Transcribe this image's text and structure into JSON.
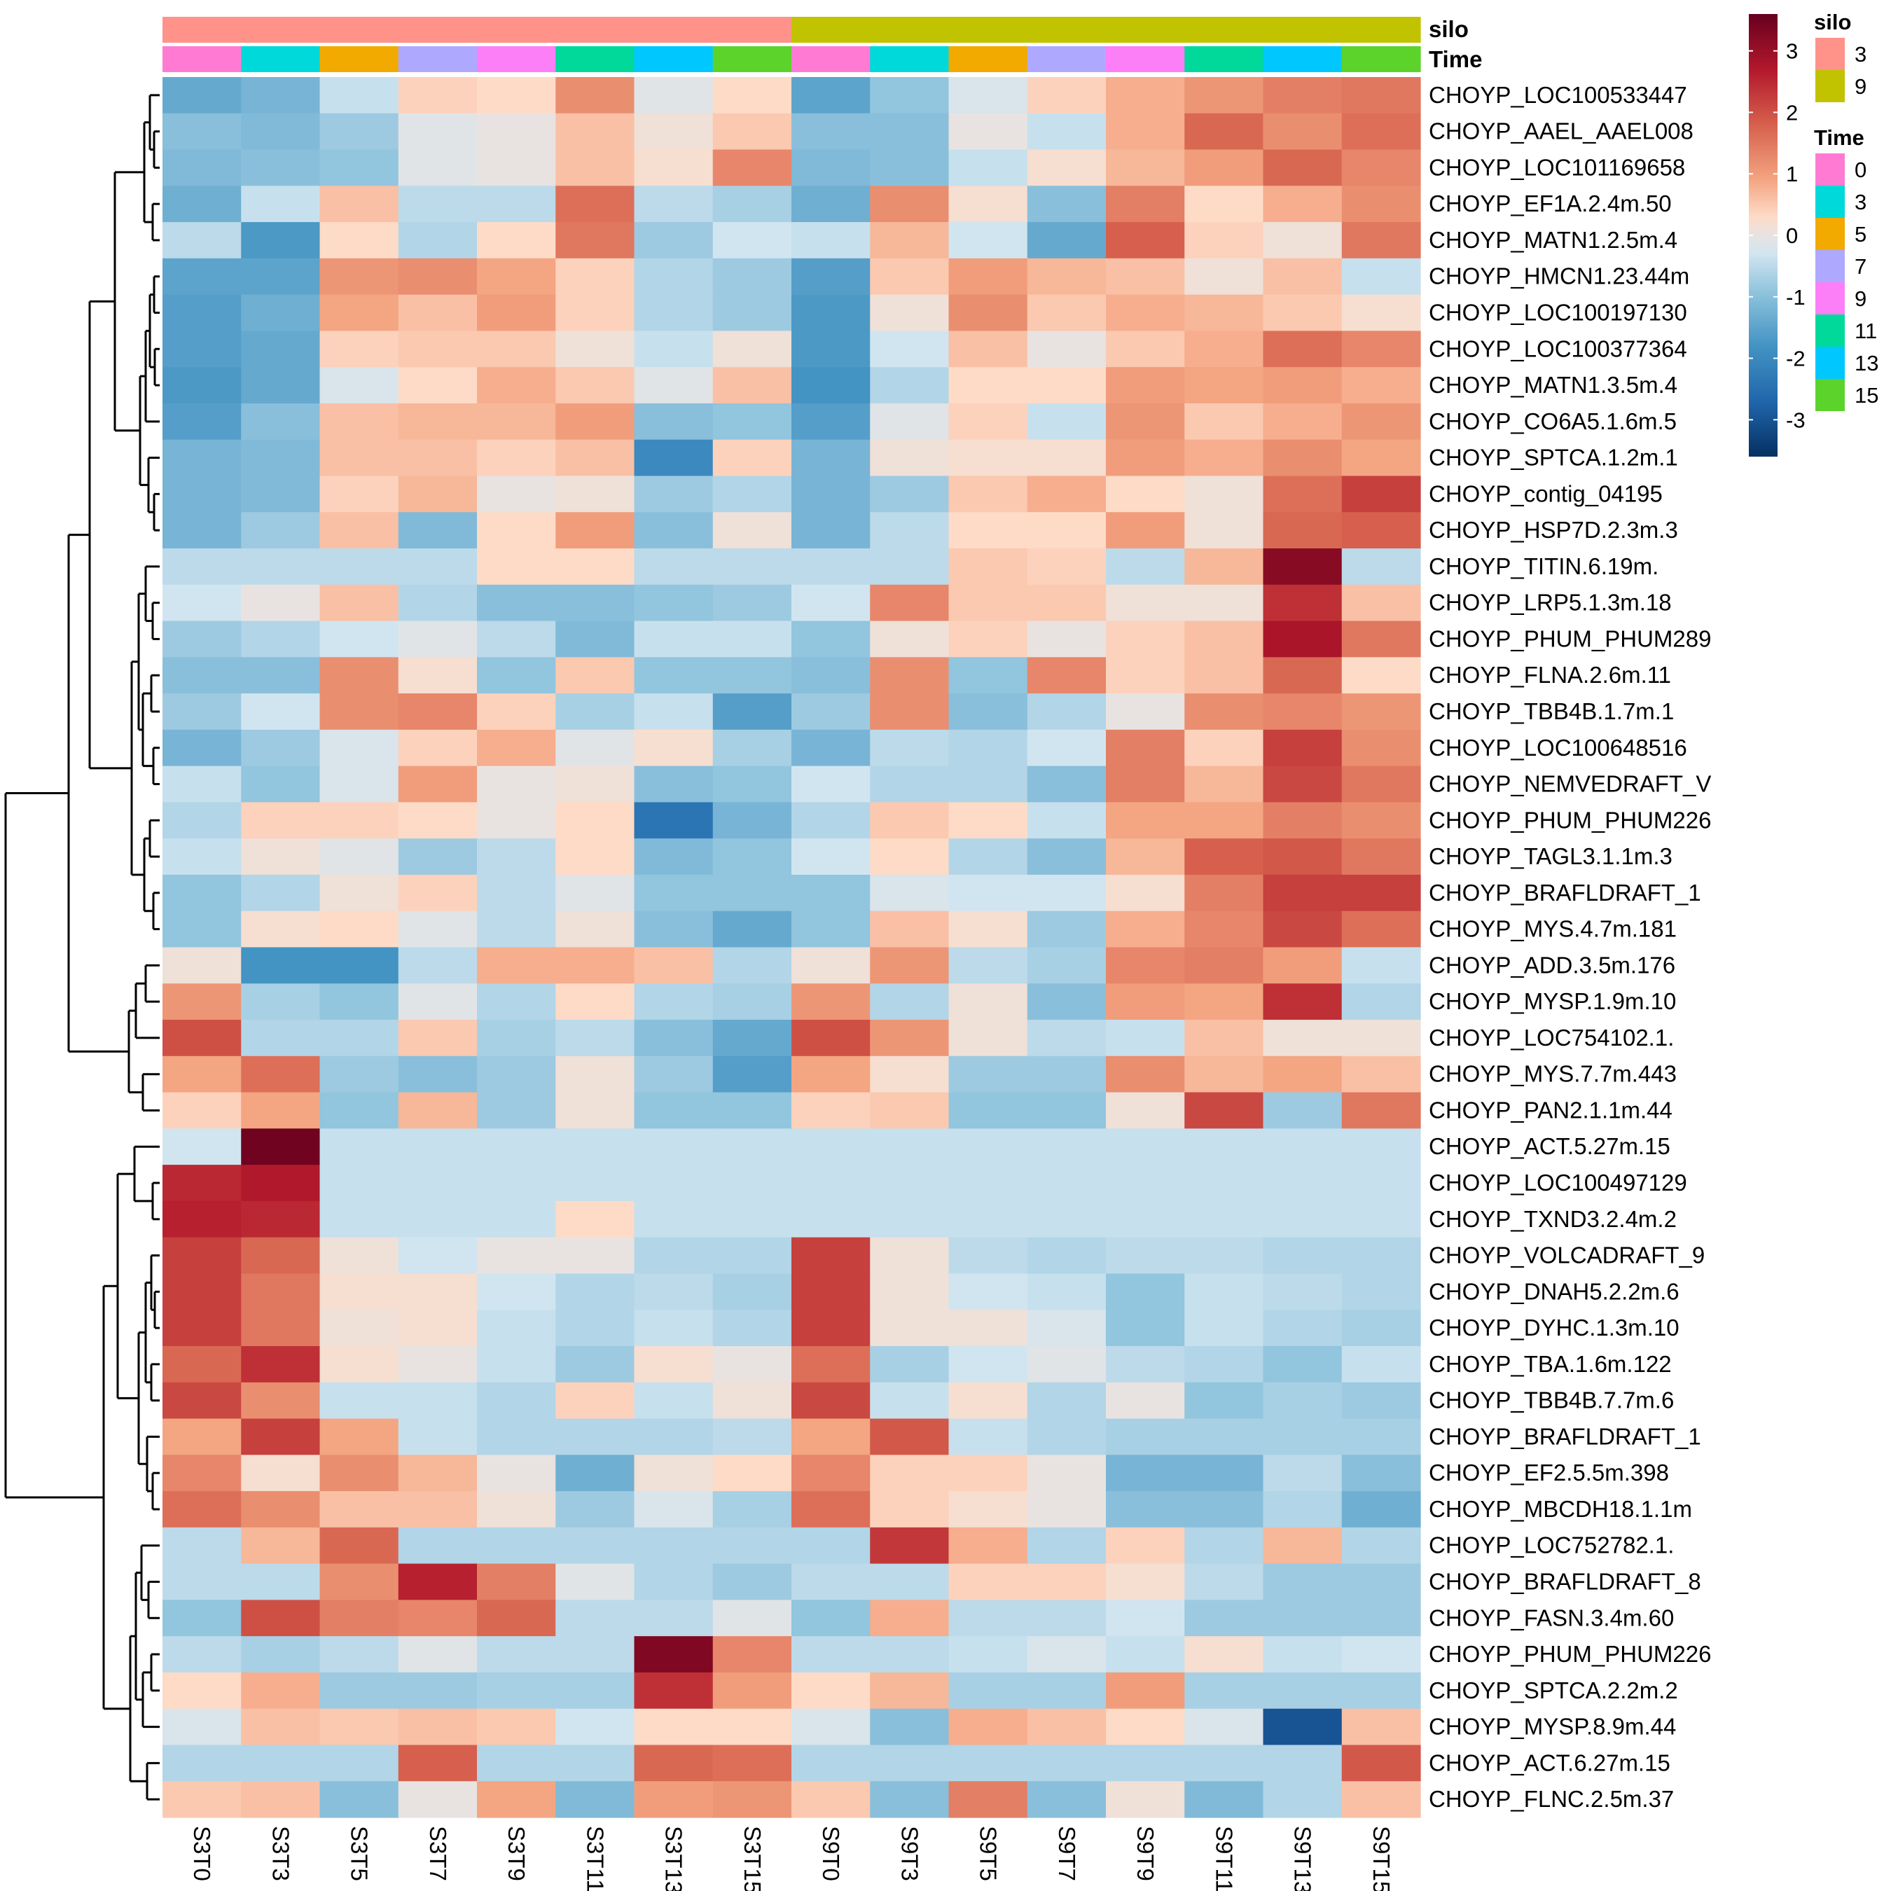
{
  "chart_data": {
    "type": "heatmap",
    "title": "",
    "columns": [
      "S3T0",
      "S3T3",
      "S3T5",
      "S3T7",
      "S3T9",
      "S3T11",
      "S3T13",
      "S3T15",
      "S9T0",
      "S9T3",
      "S9T5",
      "S9T7",
      "S9T9",
      "S9T11",
      "S9T13",
      "S9T15"
    ],
    "rows": [
      "CHOYP_LOC100533447",
      "CHOYP_AAEL_AAEL008",
      "CHOYP_LOC101169658",
      "CHOYP_EF1A.2.4m.50",
      "CHOYP_MATN1.2.5m.4",
      "CHOYP_HMCN1.23.44m",
      "CHOYP_LOC100197130",
      "CHOYP_LOC100377364",
      "CHOYP_MATN1.3.5m.4",
      "CHOYP_CO6A5.1.6m.5",
      "CHOYP_SPTCA.1.2m.1",
      "CHOYP_contig_04195",
      "CHOYP_HSP7D.2.3m.3",
      "CHOYP_TITIN.6.19m.",
      "CHOYP_LRP5.1.3m.18",
      "CHOYP_PHUM_PHUM289",
      "CHOYP_FLNA.2.6m.11",
      "CHOYP_TBB4B.1.7m.1",
      "CHOYP_LOC100648516",
      "CHOYP_NEMVEDRAFT_V",
      "CHOYP_PHUM_PHUM226",
      "CHOYP_TAGL3.1.1m.3",
      "CHOYP_BRAFLDRAFT_1",
      "CHOYP_MYS.4.7m.181",
      "CHOYP_ADD.3.5m.176",
      "CHOYP_MYSP.1.9m.10",
      "CHOYP_LOC754102.1.",
      "CHOYP_MYS.7.7m.443",
      "CHOYP_PAN2.1.1m.44",
      "CHOYP_ACT.5.27m.15",
      "CHOYP_LOC100497129",
      "CHOYP_TXND3.2.4m.2",
      "CHOYP_VOLCADRAFT_9",
      "CHOYP_DNAH5.2.2m.6",
      "CHOYP_DYHC.1.3m.10",
      "CHOYP_TBA.1.6m.122",
      "CHOYP_TBB4B.7.7m.6",
      "CHOYP_BRAFLDRAFT_1",
      "CHOYP_EF2.5.5m.398",
      "CHOYP_MBCDH18.1.1m",
      "CHOYP_LOC752782.1.",
      "CHOYP_BRAFLDRAFT_8",
      "CHOYP_FASN.3.4m.60",
      "CHOYP_PHUM_PHUM226",
      "CHOYP_SPTCA.2.2m.2",
      "CHOYP_MYSP.8.9m.44",
      "CHOYP_ACT.6.27m.15",
      "CHOYP_FLNC.2.5m.37"
    ],
    "values": [
      [
        -1.4,
        -1.2,
        -0.4,
        0.4,
        0.3,
        1.2,
        -0.1,
        0.3,
        -1.5,
        -0.9,
        -0.2,
        0.4,
        0.8,
        1.1,
        1.4,
        1.5
      ],
      [
        -1.0,
        -1.1,
        -0.8,
        -0.1,
        0.0,
        0.6,
        0.1,
        0.5,
        -1.0,
        -1.0,
        0.0,
        -0.4,
        0.8,
        1.7,
        1.2,
        1.6
      ],
      [
        -1.1,
        -1.0,
        -0.9,
        -0.1,
        0.0,
        0.6,
        0.2,
        1.3,
        -1.1,
        -1.0,
        -0.4,
        0.2,
        0.7,
        1.0,
        1.7,
        1.3
      ],
      [
        -1.3,
        -0.4,
        0.6,
        -0.5,
        -0.5,
        1.6,
        -0.5,
        -0.7,
        -1.3,
        1.2,
        0.2,
        -1.0,
        1.4,
        0.3,
        0.8,
        1.2
      ],
      [
        -0.5,
        -1.7,
        0.3,
        -0.6,
        0.3,
        1.5,
        -0.8,
        -0.3,
        -0.4,
        0.7,
        -0.3,
        -1.4,
        1.8,
        0.4,
        0.1,
        1.5
      ],
      [
        -1.5,
        -1.5,
        1.1,
        1.2,
        0.9,
        0.4,
        -0.6,
        -0.8,
        -1.6,
        0.5,
        1.0,
        0.7,
        0.6,
        0.1,
        0.6,
        -0.4
      ],
      [
        -1.6,
        -1.3,
        0.9,
        0.6,
        1.0,
        0.4,
        -0.6,
        -0.8,
        -1.7,
        0.1,
        1.2,
        0.5,
        0.8,
        0.7,
        0.5,
        0.2
      ],
      [
        -1.6,
        -1.4,
        0.4,
        0.5,
        0.5,
        0.1,
        -0.4,
        0.1,
        -1.7,
        -0.3,
        0.6,
        0.0,
        0.5,
        0.8,
        1.6,
        1.3
      ],
      [
        -1.7,
        -1.4,
        -0.2,
        0.3,
        0.8,
        0.5,
        -0.1,
        0.6,
        -1.8,
        -0.6,
        0.3,
        0.3,
        1.0,
        0.9,
        1.0,
        0.8
      ],
      [
        -1.6,
        -1.0,
        0.6,
        0.7,
        0.7,
        1.0,
        -1.0,
        -0.9,
        -1.6,
        -0.1,
        0.4,
        -0.4,
        1.1,
        0.5,
        0.8,
        1.1
      ],
      [
        -1.2,
        -1.1,
        0.6,
        0.6,
        0.4,
        0.6,
        -2.0,
        0.4,
        -1.2,
        0.1,
        0.2,
        0.2,
        1.0,
        0.8,
        1.2,
        0.9
      ],
      [
        -1.2,
        -1.1,
        0.4,
        0.7,
        0.0,
        0.1,
        -0.8,
        -0.6,
        -1.2,
        -0.8,
        0.5,
        0.8,
        0.3,
        0.1,
        1.6,
        2.2
      ],
      [
        -1.2,
        -0.8,
        0.6,
        -1.1,
        0.3,
        1.0,
        -1.0,
        0.1,
        -1.2,
        -0.5,
        0.3,
        0.3,
        1.0,
        0.1,
        1.7,
        1.8
      ],
      [
        -0.5,
        -0.5,
        -0.5,
        -0.5,
        0.3,
        0.3,
        -0.5,
        -0.5,
        -0.5,
        -0.5,
        0.5,
        0.4,
        -0.5,
        0.7,
        3.2,
        -0.5
      ],
      [
        -0.3,
        0.0,
        0.6,
        -0.6,
        -1.0,
        -1.0,
        -0.9,
        -0.8,
        -0.3,
        1.3,
        0.5,
        0.5,
        0.1,
        0.1,
        2.4,
        0.6
      ],
      [
        -0.8,
        -0.6,
        -0.3,
        -0.1,
        -0.5,
        -1.1,
        -0.4,
        -0.4,
        -0.9,
        0.1,
        0.4,
        0.0,
        0.4,
        0.6,
        2.8,
        1.5
      ],
      [
        -1.0,
        -1.0,
        1.2,
        0.2,
        -0.9,
        0.5,
        -0.9,
        -0.9,
        -1.0,
        1.2,
        -0.9,
        1.3,
        0.4,
        0.6,
        1.7,
        0.3
      ],
      [
        -0.8,
        -0.3,
        1.2,
        1.3,
        0.4,
        -0.7,
        -0.4,
        -1.6,
        -0.8,
        1.2,
        -1.0,
        -0.6,
        0.0,
        1.2,
        1.3,
        1.1
      ],
      [
        -1.2,
        -0.8,
        -0.2,
        0.4,
        0.8,
        -0.1,
        0.2,
        -0.7,
        -1.2,
        -0.5,
        -0.6,
        -0.3,
        1.4,
        0.4,
        2.2,
        1.2
      ],
      [
        -0.4,
        -0.9,
        -0.2,
        1.0,
        0.0,
        0.1,
        -1.0,
        -0.9,
        -0.3,
        -0.6,
        -0.6,
        -1.0,
        1.4,
        0.7,
        2.1,
        1.5
      ],
      [
        -0.6,
        0.4,
        0.4,
        0.3,
        0.0,
        0.3,
        -2.4,
        -1.2,
        -0.6,
        0.5,
        0.3,
        -0.4,
        0.9,
        0.9,
        1.4,
        1.2
      ],
      [
        -0.4,
        0.1,
        -0.1,
        -0.8,
        -0.5,
        0.3,
        -1.1,
        -0.9,
        -0.3,
        0.3,
        -0.6,
        -1.0,
        0.7,
        1.8,
        1.9,
        1.5
      ],
      [
        -0.9,
        -0.6,
        0.1,
        0.4,
        -0.5,
        -0.1,
        -0.9,
        -0.9,
        -0.9,
        -0.2,
        -0.3,
        -0.3,
        0.2,
        1.4,
        2.2,
        2.2
      ],
      [
        -0.9,
        0.2,
        0.3,
        -0.1,
        -0.5,
        0.1,
        -1.0,
        -1.4,
        -0.9,
        0.6,
        0.2,
        -0.8,
        0.8,
        1.3,
        2.1,
        1.6
      ],
      [
        0.1,
        -1.8,
        -1.8,
        -0.5,
        0.8,
        0.8,
        0.6,
        -0.6,
        0.1,
        1.1,
        -0.5,
        -0.7,
        1.3,
        1.4,
        1.0,
        -0.4
      ],
      [
        1.1,
        -0.7,
        -0.9,
        -0.1,
        -0.6,
        0.3,
        -0.6,
        -0.7,
        1.1,
        -0.6,
        0.1,
        -1.0,
        1.0,
        0.9,
        2.4,
        -0.6
      ],
      [
        2.0,
        -0.6,
        -0.6,
        0.5,
        -0.7,
        -0.5,
        -1.0,
        -1.4,
        2.0,
        1.1,
        0.1,
        -0.5,
        -0.4,
        0.6,
        0.1,
        0.1
      ],
      [
        0.9,
        1.6,
        -0.8,
        -1.0,
        -0.8,
        0.1,
        -0.8,
        -1.6,
        0.9,
        0.2,
        -0.8,
        -0.8,
        1.2,
        0.7,
        0.9,
        0.6
      ],
      [
        0.4,
        0.9,
        -0.9,
        0.7,
        -0.8,
        0.1,
        -0.9,
        -0.9,
        0.4,
        0.5,
        -0.9,
        -0.9,
        0.1,
        2.1,
        -0.8,
        1.5
      ],
      [
        -0.3,
        3.5,
        -0.4,
        -0.4,
        -0.4,
        -0.4,
        -0.4,
        -0.4,
        -0.4,
        -0.4,
        -0.4,
        -0.4,
        -0.4,
        -0.4,
        -0.4,
        -0.4
      ],
      [
        2.5,
        2.7,
        -0.4,
        -0.4,
        -0.4,
        -0.4,
        -0.4,
        -0.4,
        -0.4,
        -0.4,
        -0.4,
        -0.4,
        -0.4,
        -0.4,
        -0.4,
        -0.4
      ],
      [
        2.6,
        2.5,
        -0.4,
        -0.4,
        -0.4,
        0.3,
        -0.4,
        -0.4,
        -0.4,
        -0.4,
        -0.4,
        -0.4,
        -0.4,
        -0.4,
        -0.4,
        -0.4
      ],
      [
        2.2,
        1.7,
        0.1,
        -0.3,
        0.0,
        0.0,
        -0.6,
        -0.6,
        2.2,
        0.1,
        -0.5,
        -0.6,
        -0.5,
        -0.5,
        -0.6,
        -0.6
      ],
      [
        2.2,
        1.5,
        0.2,
        0.2,
        -0.3,
        -0.6,
        -0.5,
        -0.7,
        2.2,
        0.1,
        -0.3,
        -0.4,
        -0.9,
        -0.4,
        -0.5,
        -0.6
      ],
      [
        2.2,
        1.5,
        0.1,
        0.2,
        -0.4,
        -0.6,
        -0.4,
        -0.6,
        2.2,
        0.1,
        0.1,
        -0.2,
        -0.9,
        -0.4,
        -0.6,
        -0.7
      ],
      [
        1.7,
        2.4,
        0.2,
        0.0,
        -0.4,
        -0.8,
        0.2,
        0.0,
        1.6,
        -0.7,
        -0.3,
        -0.1,
        -0.5,
        -0.6,
        -0.9,
        -0.4
      ],
      [
        2.1,
        1.2,
        -0.4,
        -0.4,
        -0.6,
        0.4,
        -0.4,
        0.1,
        2.1,
        -0.4,
        0.2,
        -0.6,
        0.0,
        -0.9,
        -0.7,
        -0.8
      ],
      [
        0.9,
        2.2,
        0.9,
        -0.4,
        -0.6,
        -0.6,
        -0.6,
        -0.5,
        0.9,
        1.9,
        -0.4,
        -0.6,
        -0.7,
        -0.7,
        -0.7,
        -0.7
      ],
      [
        1.3,
        0.2,
        1.2,
        0.7,
        0.0,
        -1.3,
        0.1,
        0.3,
        1.3,
        0.4,
        0.4,
        0.0,
        -1.2,
        -1.2,
        -0.5,
        -1.0
      ],
      [
        1.6,
        1.2,
        0.6,
        0.6,
        0.1,
        -0.8,
        -0.2,
        -0.7,
        1.6,
        0.4,
        0.2,
        0.0,
        -1.0,
        -1.0,
        -0.6,
        -1.3
      ],
      [
        -0.5,
        0.7,
        1.7,
        -0.6,
        -0.6,
        -0.6,
        -0.6,
        -0.6,
        -0.6,
        2.3,
        0.8,
        -0.6,
        0.4,
        -0.6,
        0.7,
        -0.6
      ],
      [
        -0.5,
        -0.5,
        1.2,
        2.6,
        1.4,
        -0.1,
        -0.6,
        -0.8,
        -0.5,
        -0.5,
        0.4,
        0.4,
        0.2,
        -0.5,
        -0.8,
        -0.8
      ],
      [
        -0.9,
        2.0,
        1.4,
        1.3,
        1.7,
        -0.5,
        -0.5,
        -0.1,
        -0.9,
        0.8,
        -0.5,
        -0.5,
        -0.3,
        -0.8,
        -0.8,
        -0.8
      ],
      [
        -0.5,
        -0.7,
        -0.5,
        -0.1,
        -0.5,
        -0.5,
        3.3,
        1.3,
        -0.5,
        -0.5,
        -0.4,
        -0.2,
        -0.4,
        0.2,
        -0.4,
        -0.3
      ],
      [
        0.3,
        0.8,
        -0.8,
        -0.8,
        -0.7,
        -0.7,
        2.4,
        1.0,
        0.3,
        0.7,
        -0.7,
        -0.7,
        1.0,
        -0.7,
        -0.7,
        -0.7
      ],
      [
        -0.2,
        0.6,
        0.5,
        0.6,
        0.5,
        -0.3,
        0.3,
        0.3,
        -0.2,
        -1.0,
        0.8,
        0.6,
        0.3,
        -0.2,
        -3.0,
        0.6
      ],
      [
        -0.6,
        -0.6,
        -0.6,
        1.8,
        -0.6,
        -0.6,
        1.7,
        1.6,
        -0.6,
        -0.6,
        -0.6,
        -0.6,
        -0.6,
        -0.6,
        -0.6,
        1.9
      ],
      [
        0.5,
        0.6,
        -1.0,
        0.0,
        0.9,
        -1.1,
        1.0,
        1.1,
        0.5,
        -1.0,
        1.4,
        -1.0,
        0.1,
        -1.1,
        -0.6,
        0.6
      ]
    ],
    "color_scale": {
      "min": -3.6,
      "max": 3.6,
      "stops": [
        {
          "value": -3.6,
          "color": "#053061"
        },
        {
          "value": -2.7,
          "color": "#2166AC"
        },
        {
          "value": -1.8,
          "color": "#4393C3"
        },
        {
          "value": -0.9,
          "color": "#92C5DE"
        },
        {
          "value": -0.3,
          "color": "#D1E5F0"
        },
        {
          "value": 0.0,
          "color": "#E8E3E1"
        },
        {
          "value": 0.3,
          "color": "#FDDBC7"
        },
        {
          "value": 0.9,
          "color": "#F4A582"
        },
        {
          "value": 1.8,
          "color": "#D6604D"
        },
        {
          "value": 2.7,
          "color": "#B2182B"
        },
        {
          "value": 3.6,
          "color": "#67001F"
        }
      ],
      "ticks": [
        "3",
        "2",
        "1",
        "0",
        "-1",
        "-2",
        "-3"
      ],
      "tick_values": [
        3,
        2,
        1,
        0,
        -1,
        -2,
        -3
      ]
    },
    "annotations": {
      "silo": {
        "label": "silo",
        "values": [
          "3",
          "3",
          "3",
          "3",
          "3",
          "3",
          "3",
          "3",
          "9",
          "9",
          "9",
          "9",
          "9",
          "9",
          "9",
          "9"
        ],
        "levels": [
          "3",
          "9"
        ],
        "colors": {
          "3": "#FF9289",
          "9": "#C1C300"
        }
      },
      "time": {
        "label": "Time",
        "values": [
          "0",
          "3",
          "5",
          "7",
          "9",
          "11",
          "13",
          "15",
          "0",
          "3",
          "5",
          "7",
          "9",
          "11",
          "13",
          "15"
        ],
        "levels": [
          "0",
          "3",
          "5",
          "7",
          "9",
          "11",
          "13",
          "15"
        ],
        "colors": {
          "0": "#FF7BD3",
          "3": "#00D9D9",
          "5": "#F2A900",
          "7": "#AEA9FF",
          "9": "#FD7FF7",
          "11": "#00D99A",
          "13": "#00C8FF",
          "15": "#5CD32A"
        }
      }
    },
    "row_dendrogram": "hierarchical clustering (complete) of rows",
    "legend": "right"
  }
}
